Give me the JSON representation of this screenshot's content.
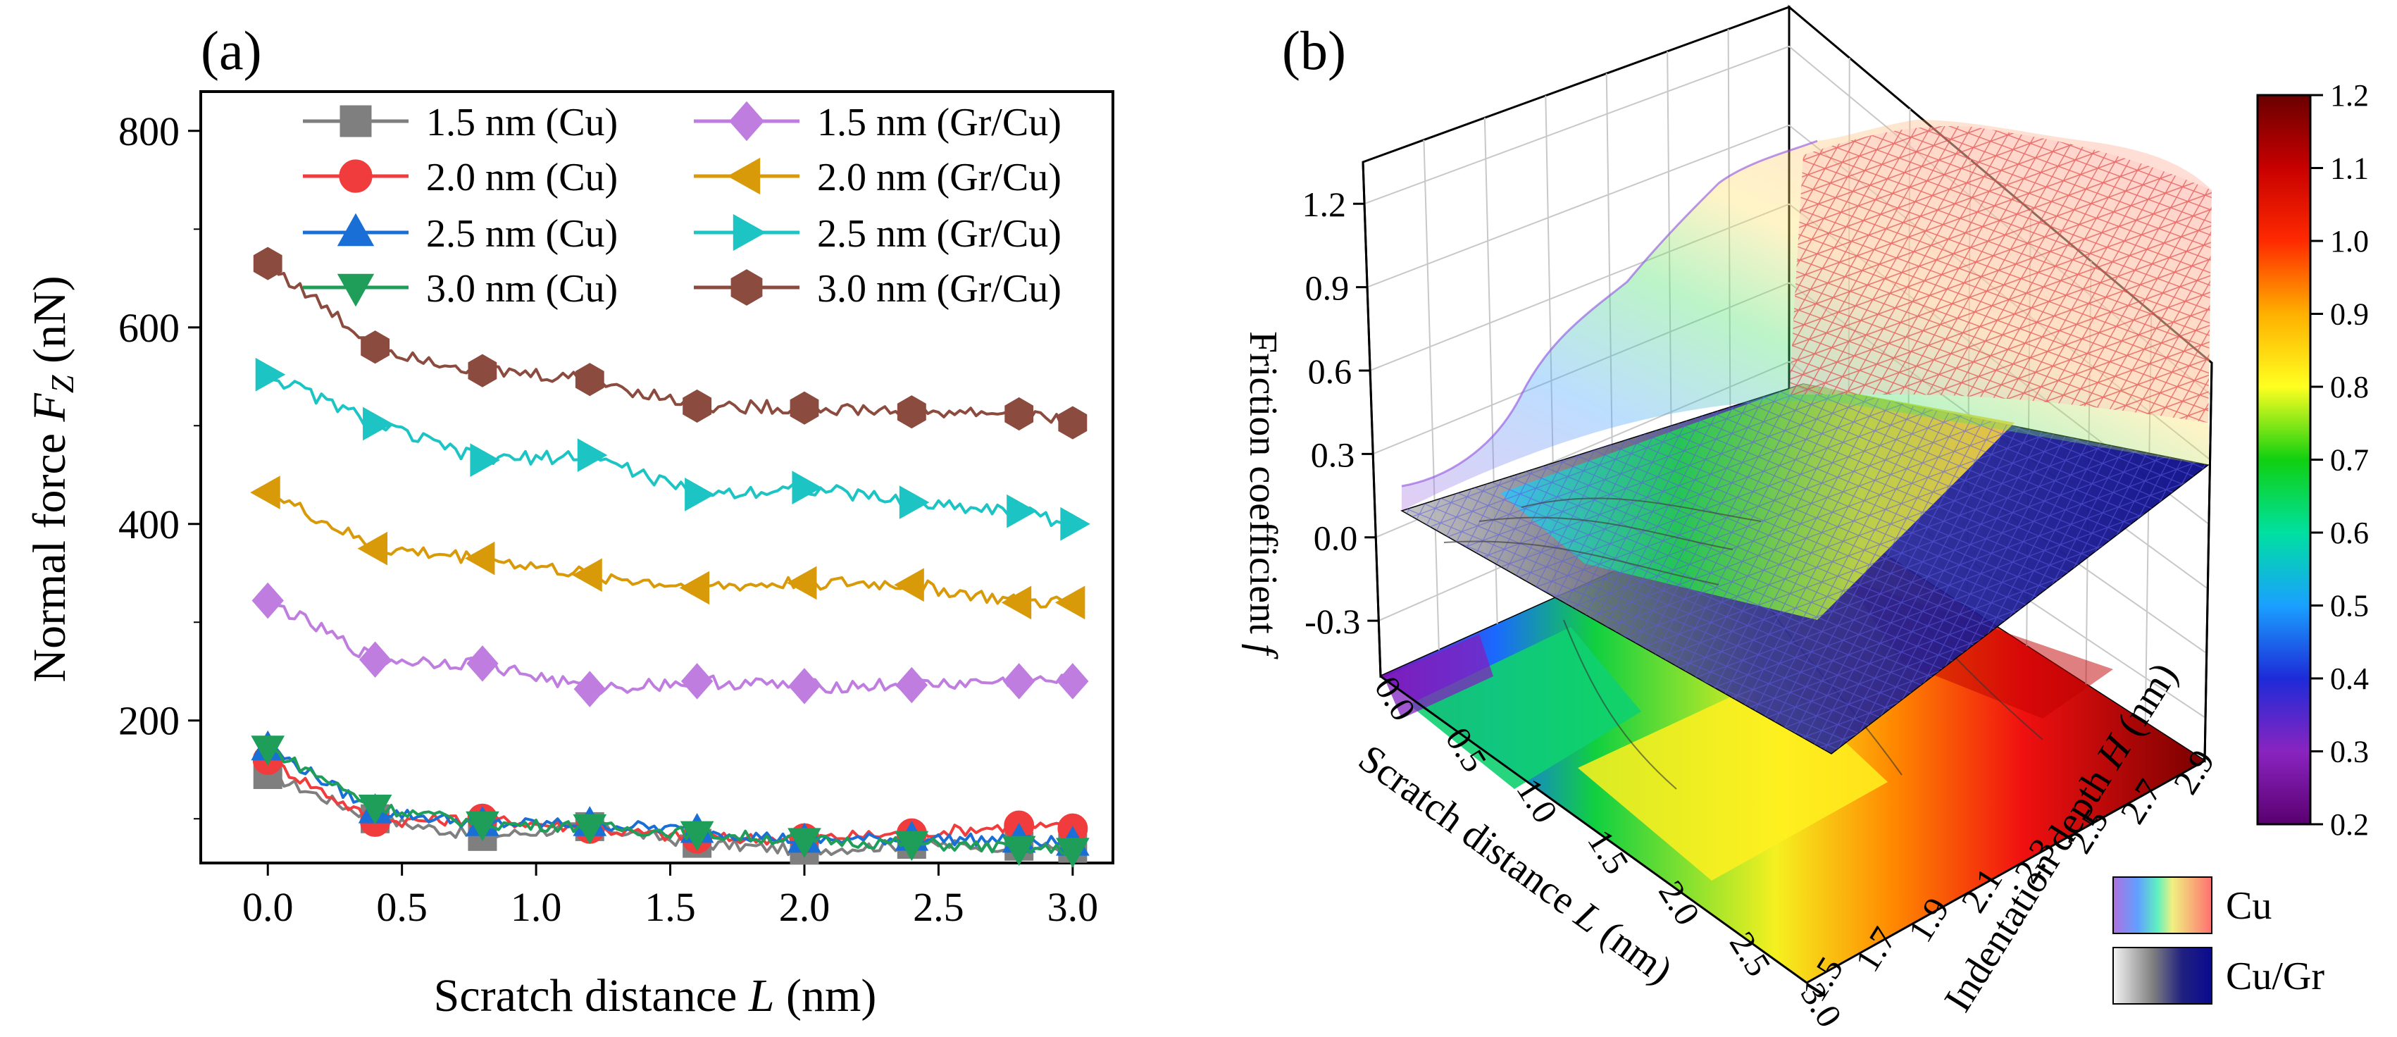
{
  "chart_data": [
    {
      "type": "line",
      "panel_label": "(a)",
      "xlabel": "Scratch distance L (nm)",
      "xlabel_parts": [
        "Scratch distance ",
        "L",
        " (nm)"
      ],
      "ylabel": "Normal force Fz (nN)",
      "ylabel_parts": [
        "Normal force ",
        "F",
        "Z",
        " (nN)"
      ],
      "xlim": [
        -0.25,
        3.15
      ],
      "ylim": [
        55,
        840
      ],
      "xticks": [
        0.0,
        0.5,
        1.0,
        1.5,
        2.0,
        2.5,
        3.0
      ],
      "xtick_labels": [
        "0.0",
        "0.5",
        "1.0",
        "1.5",
        "2.0",
        "2.5",
        "3.0"
      ],
      "yticks": [
        200,
        400,
        600,
        800
      ],
      "ytick_labels": [
        "200",
        "400",
        "600",
        "800"
      ],
      "legend_position": "top",
      "series": [
        {
          "name": "1.5 nm (Cu)",
          "color": "#7f7f7f",
          "marker": "square",
          "x": [
            0.0,
            0.4,
            0.8,
            1.2,
            1.6,
            2.0,
            2.4,
            2.8,
            3.0
          ],
          "y": [
            145,
            100,
            82,
            92,
            75,
            68,
            74,
            72,
            70
          ]
        },
        {
          "name": "2.0 nm (Cu)",
          "color": "#f03c3c",
          "marker": "circle",
          "x": [
            0.0,
            0.4,
            0.8,
            1.2,
            1.6,
            2.0,
            2.4,
            2.8,
            3.0
          ],
          "y": [
            160,
            97,
            100,
            90,
            80,
            80,
            85,
            93,
            90
          ]
        },
        {
          "name": "2.5 nm (Cu)",
          "color": "#1a6fd6",
          "marker": "triangle-up",
          "x": [
            0.0,
            0.4,
            0.8,
            1.2,
            1.6,
            2.0,
            2.4,
            2.8,
            3.0
          ],
          "y": [
            172,
            108,
            95,
            95,
            88,
            78,
            80,
            78,
            75
          ]
        },
        {
          "name": "3.0 nm (Cu)",
          "color": "#1e9e58",
          "marker": "triangle-down",
          "x": [
            0.0,
            0.4,
            0.8,
            1.2,
            1.6,
            2.0,
            2.4,
            2.8,
            3.0
          ],
          "y": [
            172,
            112,
            95,
            92,
            85,
            78,
            75,
            70,
            68
          ]
        },
        {
          "name": "1.5 nm (Gr/Cu)",
          "color": "#c07de0",
          "marker": "diamond",
          "x": [
            0.0,
            0.4,
            0.8,
            1.2,
            1.6,
            2.0,
            2.4,
            2.8,
            3.0
          ],
          "y": [
            322,
            262,
            258,
            232,
            240,
            235,
            236,
            240,
            240
          ]
        },
        {
          "name": "2.0 nm (Gr/Cu)",
          "color": "#d99a0a",
          "marker": "triangle-left",
          "x": [
            0.0,
            0.4,
            0.8,
            1.2,
            1.6,
            2.0,
            2.4,
            2.8,
            3.0
          ],
          "y": [
            432,
            375,
            365,
            348,
            335,
            340,
            338,
            320,
            320
          ]
        },
        {
          "name": "2.5 nm (Gr/Cu)",
          "color": "#1cc4c4",
          "marker": "triangle-right",
          "x": [
            0.0,
            0.4,
            0.8,
            1.2,
            1.6,
            2.0,
            2.4,
            2.8,
            3.0
          ],
          "y": [
            552,
            502,
            465,
            470,
            430,
            437,
            422,
            413,
            400
          ]
        },
        {
          "name": "3.0 nm (Gr/Cu)",
          "color": "#8c4b3f",
          "marker": "hexagon",
          "x": [
            0.0,
            0.4,
            0.8,
            1.2,
            1.6,
            2.0,
            2.4,
            2.8,
            3.0
          ],
          "y": [
            665,
            580,
            556,
            547,
            520,
            518,
            514,
            512,
            503
          ]
        }
      ]
    },
    {
      "type": "surface3d",
      "panel_label": "(b)",
      "zlabel": "Friction coefficient f",
      "zlabel_parts": [
        "Friction coefficient ",
        "f"
      ],
      "xlabel": "Scratch distance L (nm)",
      "xlabel_parts": [
        "Scratch distance ",
        "L",
        " (nm)"
      ],
      "ylabel": "Indentation depth H (nm)",
      "ylabel_parts": [
        "Indentation depth ",
        "H",
        " (nm)"
      ],
      "xlim": [
        0.0,
        3.0
      ],
      "ylim": [
        1.5,
        3.0
      ],
      "zlim": [
        -0.5,
        1.35
      ],
      "zticks": [
        -0.3,
        0.0,
        0.3,
        0.6,
        0.9,
        1.2
      ],
      "ztick_labels": [
        "-0.3",
        "0.0",
        "0.3",
        "0.6",
        "0.9",
        "1.2"
      ],
      "xticks": [
        0.0,
        0.5,
        1.0,
        1.5,
        2.0,
        2.5,
        3.0
      ],
      "xtick_labels": [
        "0.0",
        "0.5",
        "1.0",
        "1.5",
        "2.0",
        "2.5",
        "3.0"
      ],
      "yticks": [
        1.5,
        1.7,
        1.9,
        2.1,
        2.3,
        2.5,
        2.7,
        2.9
      ],
      "ytick_labels": [
        "1.5",
        "1.7",
        "1.9",
        "2.1",
        "2.3",
        "2.5",
        "2.7",
        "2.9"
      ],
      "colorbar": {
        "ticks": [
          0.2,
          0.3,
          0.4,
          0.5,
          0.6,
          0.7,
          0.8,
          0.9,
          1.0,
          1.1,
          1.2
        ],
        "tick_labels": [
          "0.2",
          "0.3",
          "0.4",
          "0.5",
          "0.6",
          "0.7",
          "0.8",
          "0.9",
          "1.0",
          "1.1",
          "1.2"
        ],
        "range": [
          0.2,
          1.2
        ]
      },
      "legend": [
        {
          "name": "Cu",
          "style": "rainbow mesh"
        },
        {
          "name": "Cu/Gr",
          "style": "grey-to-navy surface"
        }
      ],
      "surfaces": [
        {
          "name": "Cu",
          "corner_values": {
            "L0_H1.5": 0.3,
            "L0_H3.0": 0.3,
            "L3_H1.5": 1.1,
            "L3_H3.0": 1.2
          }
        },
        {
          "name": "Cu/Gr",
          "corner_values": {
            "L0_H1.5": 0.1,
            "L0_H3.0": 0.2,
            "L3_H1.5": 0.55,
            "L3_H3.0": 0.6
          }
        }
      ]
    }
  ]
}
